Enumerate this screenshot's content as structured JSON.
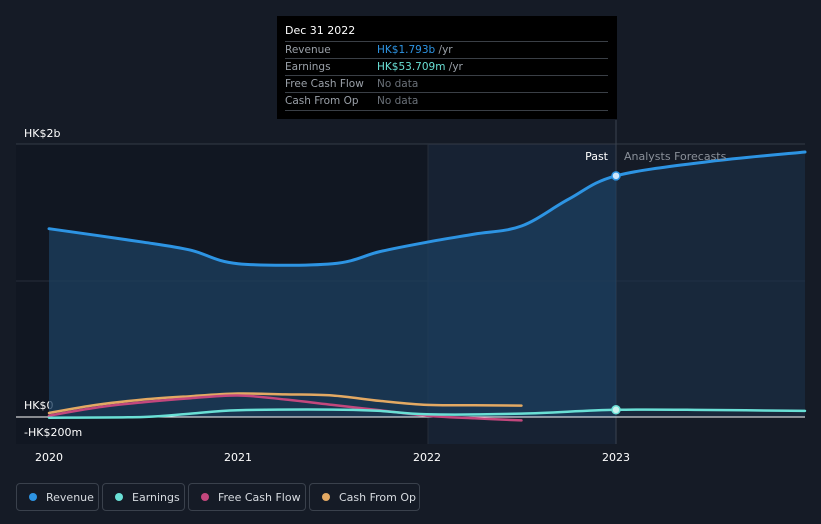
{
  "chart_data": {
    "type": "line",
    "x_ticks": [
      "2020",
      "2021",
      "2022",
      "2023"
    ],
    "y_labels": {
      "top": "HK$2b",
      "zero": "HK$0",
      "bottom": "-HK$200m"
    },
    "ylim": [
      -200,
      2000
    ],
    "past_label": "Past",
    "forecast_label": "Analysts Forecasts",
    "series": [
      {
        "name": "Revenue",
        "color": "#2d94e3",
        "x": [
          2020.0,
          2020.5,
          2020.75,
          2021.0,
          2021.5,
          2021.75,
          2022.0,
          2022.25,
          2022.5,
          2022.75,
          2023.0,
          2023.5,
          2024.0
        ],
        "values": [
          1400,
          1300,
          1240,
          1140,
          1140,
          1230,
          1300,
          1360,
          1420,
          1620,
          1793,
          1900,
          1970
        ]
      },
      {
        "name": "Earnings",
        "color": "#6ae0d6",
        "x": [
          2020.0,
          2020.5,
          2020.75,
          2021.0,
          2021.5,
          2021.75,
          2022.0,
          2022.5,
          2023.0,
          2023.5,
          2024.0
        ],
        "values": [
          -5,
          0,
          25,
          50,
          55,
          45,
          20,
          25,
          53.709,
          52,
          45
        ]
      },
      {
        "name": "Free Cash Flow",
        "color": "#c3477d",
        "x": [
          2020.0,
          2020.25,
          2020.5,
          2020.75,
          2021.0,
          2021.25,
          2021.5,
          2021.75,
          2022.0,
          2022.25,
          2022.5
        ],
        "values": [
          10,
          70,
          110,
          140,
          160,
          130,
          90,
          50,
          10,
          -10,
          -25
        ]
      },
      {
        "name": "Cash From Op",
        "color": "#e3a963",
        "x": [
          2020.0,
          2020.25,
          2020.5,
          2020.75,
          2021.0,
          2021.25,
          2021.5,
          2021.75,
          2022.0,
          2022.25,
          2022.5
        ],
        "values": [
          30,
          90,
          130,
          155,
          175,
          168,
          160,
          120,
          90,
          88,
          85
        ]
      }
    ]
  },
  "tooltip": {
    "date": "Dec 31 2022",
    "rows": [
      {
        "label": "Revenue",
        "value": "HK$1.793b",
        "unit": " /yr",
        "color": "#2d94e3"
      },
      {
        "label": "Earnings",
        "value": "HK$53.709m",
        "unit": " /yr",
        "color": "#6ae0d6"
      },
      {
        "label": "Free Cash Flow",
        "value": "No data",
        "unit": "",
        "color": "#6b7179"
      },
      {
        "label": "Cash From Op",
        "value": "No data",
        "unit": "",
        "color": "#6b7179"
      }
    ]
  },
  "legend": [
    {
      "label": "Revenue",
      "color": "#2d94e3"
    },
    {
      "label": "Earnings",
      "color": "#6ae0d6"
    },
    {
      "label": "Free Cash Flow",
      "color": "#c3477d"
    },
    {
      "label": "Cash From Op",
      "color": "#e3a963"
    }
  ]
}
